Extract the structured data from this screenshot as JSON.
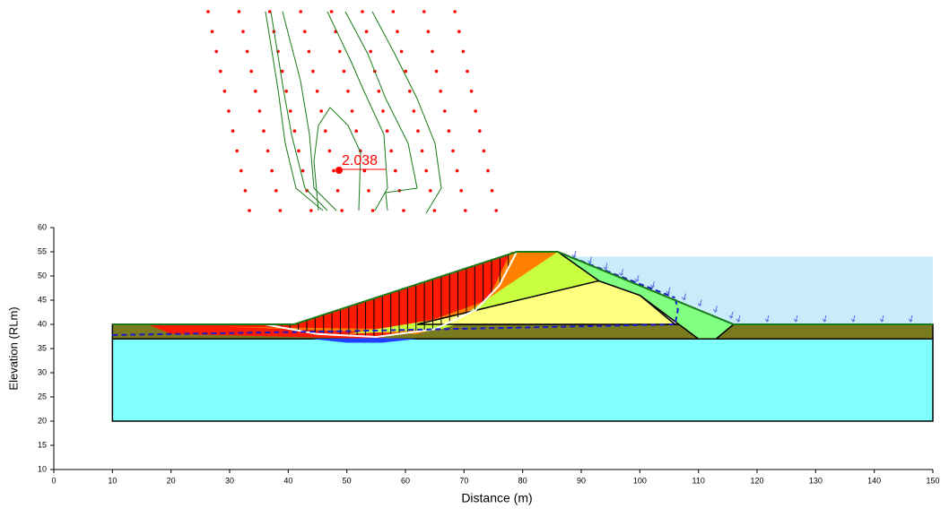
{
  "chart_data": {
    "type": "slope-section",
    "x_label": "Distance (m)",
    "y_label": "Elevation (RLm)",
    "xlim": [
      0,
      150
    ],
    "ylim": [
      10,
      60
    ],
    "xticks": [
      0,
      10,
      20,
      30,
      40,
      50,
      60,
      70,
      80,
      90,
      100,
      110,
      120,
      130,
      140,
      150
    ],
    "yticks": [
      10,
      15,
      20,
      25,
      30,
      35,
      40,
      45,
      50,
      55,
      60
    ],
    "min_factor_of_safety": 2.038,
    "regions": [
      {
        "color": "#80ffff",
        "outline": true,
        "x": [
          10,
          150,
          150,
          10
        ],
        "y": [
          20,
          20,
          37,
          37
        ]
      },
      {
        "color": "#7a7a1e",
        "outline": true,
        "x": [
          10,
          150,
          150,
          10
        ],
        "y": [
          37,
          37,
          40,
          40
        ]
      },
      {
        "color": "#c8ecfa",
        "outline": false,
        "x": [
          88,
          150,
          150,
          116
        ],
        "y": [
          54,
          54,
          40,
          40
        ]
      },
      {
        "color": "#ff1a00",
        "outline": false,
        "x": [
          16,
          41,
          79,
          86,
          93,
          55,
          20
        ],
        "y": [
          40,
          40,
          55,
          55,
          49,
          37,
          38
        ]
      },
      {
        "color": "#ff8000",
        "outline": false,
        "x": [
          78,
          86,
          93,
          62,
          30,
          60,
          74
        ],
        "y": [
          55,
          55,
          49,
          38,
          39.5,
          39,
          45
        ]
      },
      {
        "color": "#c8ff40",
        "outline": false,
        "x": [
          86,
          93,
          66,
          50,
          70
        ],
        "y": [
          55,
          49,
          39,
          38,
          42
        ]
      },
      {
        "color": "#ffff80",
        "outline": true,
        "x": [
          62,
          93,
          100,
          106
        ],
        "y": [
          40,
          49,
          46,
          40
        ]
      },
      {
        "color": "#80ff80",
        "outline": true,
        "x": [
          86,
          116,
          113,
          110,
          100,
          93
        ],
        "y": [
          55,
          40,
          37,
          37,
          46,
          49
        ]
      },
      {
        "color": "#2040ff",
        "outline": false,
        "x": [
          44,
          50,
          56,
          62,
          55
        ],
        "y": [
          37,
          36.2,
          36.2,
          37,
          37.2
        ]
      }
    ],
    "lines": [
      {
        "color": "#ffffff",
        "dash": false,
        "x": [
          36,
          45,
          55,
          65,
          72,
          76,
          79
        ],
        "y": [
          40,
          38,
          37.4,
          39,
          43,
          48,
          55
        ]
      },
      {
        "color": "#1a1acc",
        "dash": true,
        "x": [
          10,
          50,
          106,
          106.5,
          106
        ],
        "y": [
          37.8,
          38.6,
          40,
          43,
          45.5
        ]
      },
      {
        "color": "#1a1acc",
        "dash": true,
        "x": [
          87,
          106
        ],
        "y": [
          54.5,
          45.5
        ]
      },
      {
        "color": "#1a7a1a",
        "dash": false,
        "x": [
          10,
          41,
          79,
          86,
          116,
          150
        ],
        "y": [
          40,
          40,
          55,
          55,
          40,
          40
        ]
      }
    ]
  }
}
